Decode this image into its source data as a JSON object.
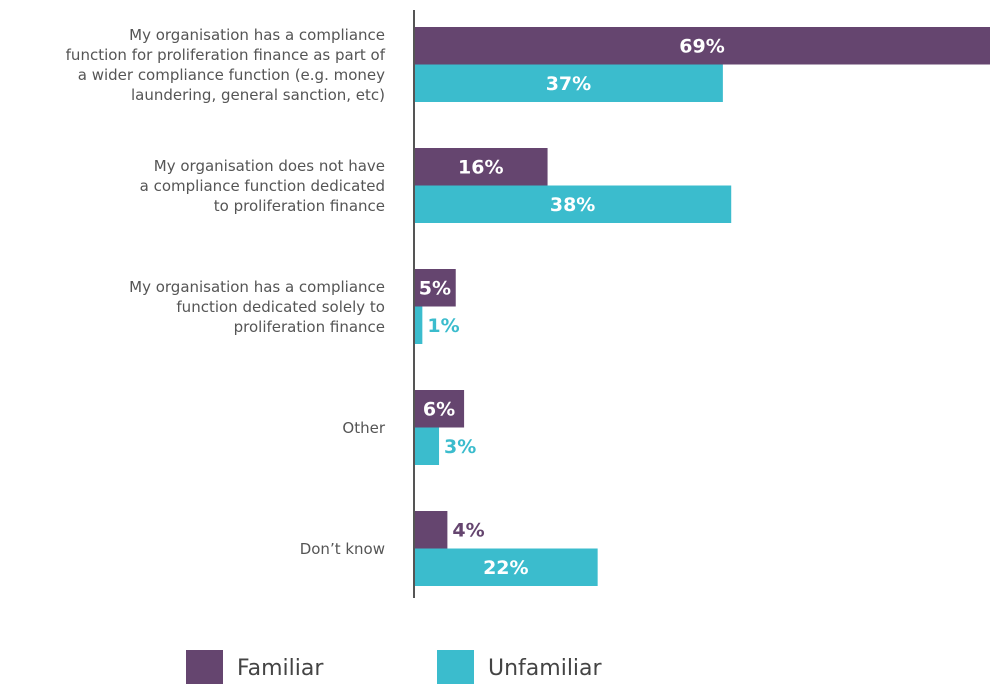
{
  "chart_data": {
    "type": "hbar",
    "categories": [
      "My organisation has a compliance\nfunction for proliferation finance as part of\na wider compliance function (e.g. money\nlaundering, general sanction, etc)",
      "My organisation does not have\na compliance function dedicated\nto proliferation finance",
      "My organisation has a compliance\nfunction dedicated solely to\nproliferation finance",
      "Other",
      "Don’t know"
    ],
    "series": [
      {
        "name": "Familiar",
        "color": "#65456f",
        "values": [
          69,
          16,
          5,
          6,
          4
        ],
        "value_labels": [
          "69%",
          "16%",
          "5%",
          "6%",
          "4%"
        ]
      },
      {
        "name": "Unfamiliar",
        "color": "#3bbccd",
        "values": [
          37,
          38,
          1,
          3,
          22
        ],
        "value_labels": [
          "37%",
          "38%",
          "1%",
          "3%",
          "22%"
        ]
      }
    ]
  }
}
